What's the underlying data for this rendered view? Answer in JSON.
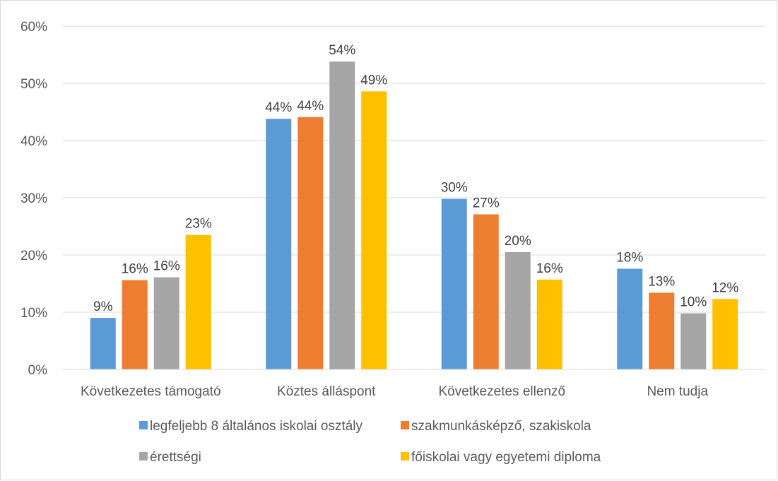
{
  "chart_data": {
    "type": "bar",
    "title": "",
    "xlabel": "",
    "ylabel": "",
    "ylim": [
      0,
      60
    ],
    "ytick_values": [
      0,
      10,
      20,
      30,
      40,
      50,
      60
    ],
    "ytick_labels": [
      "0%",
      "10%",
      "20%",
      "30%",
      "40%",
      "50%",
      "60%"
    ],
    "grid": true,
    "legend_position": "bottom",
    "categories": [
      "Következetes támogató",
      "Köztes álláspont",
      "Következetes ellenző",
      "Nem tudja"
    ],
    "series": [
      {
        "name": "legfeljebb 8 általános iskolai osztály",
        "color": "#5b9bd5",
        "values": [
          9,
          43.8,
          29.8,
          17.6
        ],
        "labels": [
          "9%",
          "44%",
          "30%",
          "18%"
        ]
      },
      {
        "name": "szakmunkásképző, szakiskola",
        "color": "#ed7d31",
        "values": [
          15.6,
          44.1,
          27.1,
          13.4
        ],
        "labels": [
          "16%",
          "44%",
          "27%",
          "13%"
        ]
      },
      {
        "name": "érettségi",
        "color": "#a5a5a5",
        "values": [
          16.1,
          53.8,
          20.5,
          9.8
        ],
        "labels": [
          "16%",
          "54%",
          "20%",
          "10%"
        ]
      },
      {
        "name": "főiskolai vagy egyetemi diploma",
        "color": "#ffc000",
        "values": [
          23.5,
          48.6,
          15.7,
          12.3
        ],
        "labels": [
          "23%",
          "49%",
          "16%",
          "12%"
        ]
      }
    ]
  }
}
